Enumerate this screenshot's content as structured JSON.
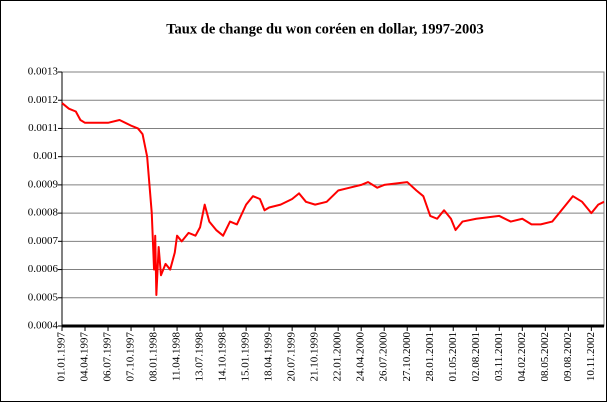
{
  "chart_data": {
    "type": "line",
    "title": "Taux de change du won coréen en dollar, 1997-2003",
    "color": "#ff0000",
    "grid": true,
    "x": [
      0,
      0.3,
      0.6,
      0.8,
      1,
      2,
      2.5,
      3,
      3.3,
      3.5,
      3.7,
      3.8,
      3.9,
      4.0,
      4.05,
      4.1,
      4.2,
      4.3,
      4.5,
      4.7,
      4.9,
      5.0,
      5.2,
      5.5,
      5.8,
      6.0,
      6.2,
      6.4,
      6.7,
      7,
      7.3,
      7.6,
      8,
      8.3,
      8.6,
      8.8,
      9,
      9.5,
      10,
      10.3,
      10.6,
      11,
      11.5,
      12,
      12.5,
      13,
      13.3,
      13.7,
      14,
      15,
      15.4,
      15.7,
      16,
      16.3,
      16.6,
      16.9,
      17.1,
      17.4,
      18,
      19,
      19.5,
      20,
      20.4,
      20.8,
      21.3,
      21.8,
      22.2,
      22.6,
      23,
      23.3,
      23.55
    ],
    "values": [
      0.00119,
      0.00117,
      0.00116,
      0.00113,
      0.00112,
      0.00112,
      0.00113,
      0.00111,
      0.0011,
      0.00108,
      0.001,
      0.0009,
      0.0008,
      0.0006,
      0.00072,
      0.00051,
      0.00068,
      0.00058,
      0.00062,
      0.0006,
      0.00066,
      0.00072,
      0.0007,
      0.00073,
      0.00072,
      0.00075,
      0.00083,
      0.00077,
      0.00074,
      0.00072,
      0.00077,
      0.00076,
      0.00083,
      0.00086,
      0.00085,
      0.00081,
      0.00082,
      0.00083,
      0.00085,
      0.00087,
      0.00084,
      0.00083,
      0.00084,
      0.00088,
      0.00089,
      0.0009,
      0.00091,
      0.00089,
      0.0009,
      0.00091,
      0.00088,
      0.00086,
      0.00079,
      0.00078,
      0.00081,
      0.00078,
      0.00074,
      0.00077,
      0.00078,
      0.00079,
      0.00077,
      0.00078,
      0.00076,
      0.00076,
      0.00077,
      0.00082,
      0.00086,
      0.00084,
      0.0008,
      0.00083,
      0.00084
    ],
    "xlim": [
      0,
      23.55
    ],
    "xticks": [
      {
        "value": 0,
        "label": "01.01.1997"
      },
      {
        "value": 1,
        "label": "04.04.1997"
      },
      {
        "value": 2,
        "label": "06.07.1997"
      },
      {
        "value": 3,
        "label": "07.10.1997"
      },
      {
        "value": 4,
        "label": "08.01.1998"
      },
      {
        "value": 5,
        "label": "11.04.1998"
      },
      {
        "value": 6,
        "label": "13.07.1998"
      },
      {
        "value": 7,
        "label": "14.10.1998"
      },
      {
        "value": 8,
        "label": "15.01.1999"
      },
      {
        "value": 9,
        "label": "18.04.1999"
      },
      {
        "value": 10,
        "label": "20.07.1999"
      },
      {
        "value": 11,
        "label": "21.10.1999"
      },
      {
        "value": 12,
        "label": "22.01.2000"
      },
      {
        "value": 13,
        "label": "24.04.2000"
      },
      {
        "value": 14,
        "label": "26.07.2000"
      },
      {
        "value": 15,
        "label": "27.10.2000"
      },
      {
        "value": 16,
        "label": "28.01.2001"
      },
      {
        "value": 17,
        "label": "01.05.2001"
      },
      {
        "value": 18,
        "label": "02.08.2001"
      },
      {
        "value": 19,
        "label": "03.11.2001"
      },
      {
        "value": 20,
        "label": "04.02.2002"
      },
      {
        "value": 21,
        "label": "08.05.2002"
      },
      {
        "value": 22,
        "label": "09.08.2002"
      },
      {
        "value": 23,
        "label": "10.11.2002"
      }
    ],
    "ylim": [
      0.0004,
      0.0013
    ],
    "yticks": [
      0.0004,
      0.0005,
      0.0006,
      0.0007,
      0.0008,
      0.0009,
      0.001,
      0.0011,
      0.0012,
      0.0013
    ]
  }
}
